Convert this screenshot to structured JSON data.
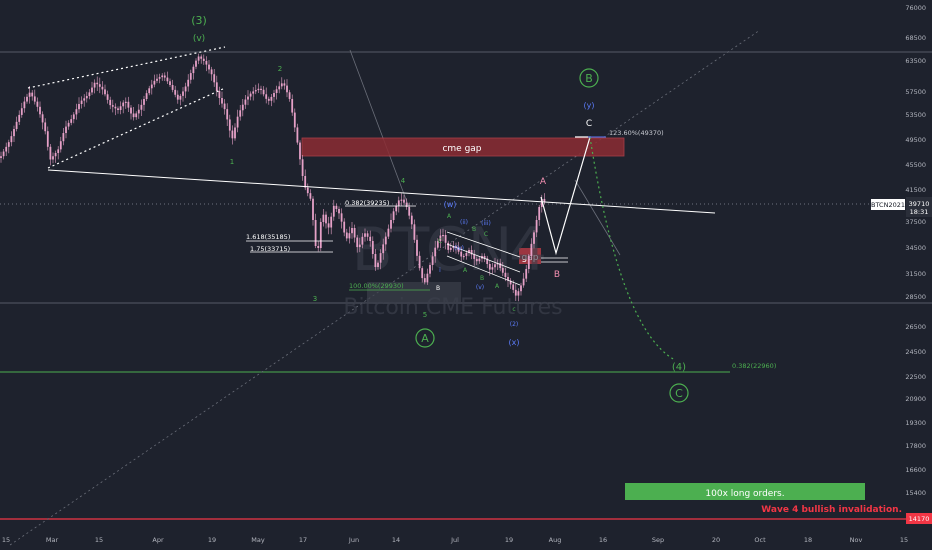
{
  "chart_data": {
    "type": "line",
    "symbol": "BTCN2021",
    "watermark": {
      "ticker": "BTCN",
      "suffix": "4",
      "name": "Bitcoin CME Futures"
    },
    "ylim": [
      14000,
      78000
    ],
    "y_scale": "log",
    "price_axis": [
      "76000",
      "68500",
      "63500",
      "57500",
      "53500",
      "49500",
      "45500",
      "41500",
      "37500",
      "34500",
      "31500",
      "28500",
      "26500",
      "24500",
      "22500",
      "20900",
      "19300",
      "17800",
      "16600",
      "15400",
      "14300"
    ],
    "time_axis": [
      "15",
      "Mar",
      "15",
      "Apr",
      "19",
      "May",
      "17",
      "Jun",
      "14",
      "Jul",
      "19",
      "Aug",
      "16",
      "Sep",
      "20",
      "Oct",
      "18",
      "Nov",
      "15"
    ],
    "last_price": {
      "label": "BTCN2021",
      "value": "39710",
      "countdown": "18:31"
    },
    "invalidation": {
      "value": "14170",
      "text": "Wave 4 bullish invalidation."
    },
    "cme_gap": {
      "label": "cme gap",
      "low": 46800,
      "high": 49370
    },
    "gap_box": {
      "label": "gap"
    },
    "long_orders": {
      "label": "100x long orders."
    },
    "fib_levels": [
      {
        "label": "123.60%(49370)",
        "value": 49370
      },
      {
        "label": "0.382(39235)",
        "value": 39235
      },
      {
        "label": "1.618(35185)",
        "value": 35185
      },
      {
        "label": "1.75(33715)",
        "value": 33715
      },
      {
        "label": "100.00%(29930)",
        "value": 29930
      },
      {
        "label": "0.382(22960)",
        "value": 22960
      }
    ],
    "wave_labels": {
      "w3": "(3)",
      "v": "(v)",
      "w2": "2",
      "w1": "1",
      "w3s": "3",
      "w4s": "4",
      "w5": "5",
      "A": "A",
      "Aup": "A",
      "w": "(w)",
      "x": "(x)",
      "y": "(y)",
      "B": "B",
      "Bs": "B",
      "Cs": "C",
      "w4": "(4)",
      "C": "C",
      "i": "i",
      "ii": "(ii)",
      "iii": "(iii)",
      "iv": "(iv)",
      "v2": "(v)",
      "z2": "(2)",
      "c": "c",
      "a1": "A",
      "b1": "B",
      "c1": "C",
      "a2": "A",
      "b2": "B",
      "c2": "C",
      "b3": "B",
      "a3": "A"
    },
    "colors": {
      "background": "#1e222d",
      "candle": "#e6a1c7",
      "trend": "#ffffff",
      "fib": "#4caf50",
      "cme_gap": "#8c2c33",
      "invalidation": "#f23645",
      "wave_green": "#4caf50",
      "wave_blue": "#5c7cfa",
      "projection": "#ffffff"
    }
  }
}
